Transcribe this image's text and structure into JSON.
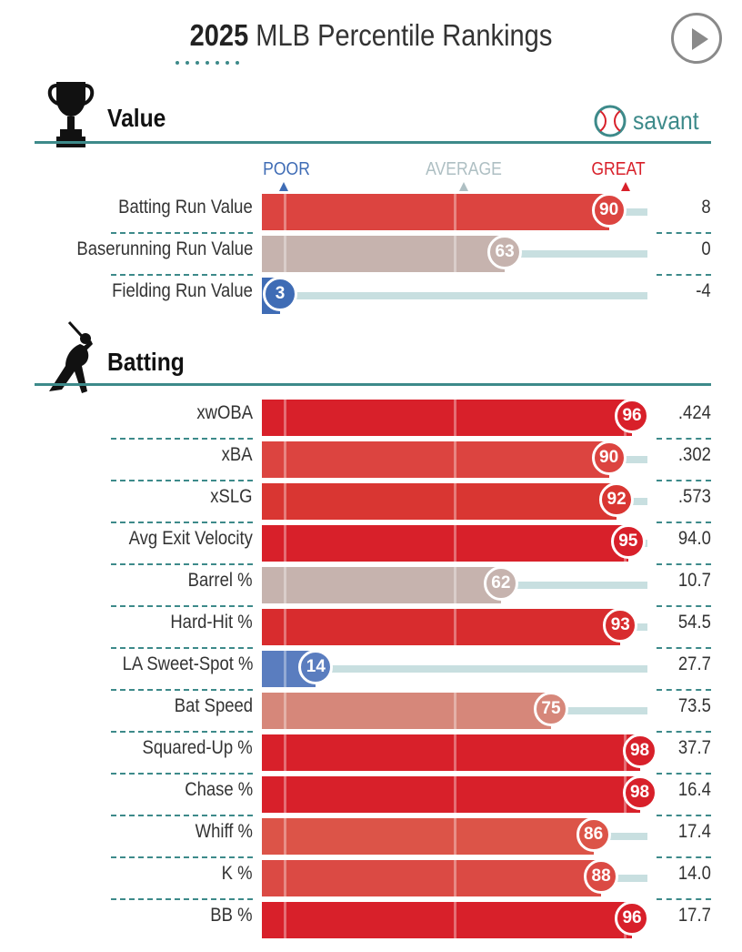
{
  "header": {
    "title_year": "2025",
    "title_rest": "MLB Percentile Rankings",
    "play_button_icon": "play-icon"
  },
  "brand": {
    "logo_icon": "baseball-icon",
    "name": "savant"
  },
  "scale": {
    "poor": "POOR",
    "average": "AVERAGE",
    "great": "GREAT"
  },
  "colors": {
    "accent": "#3d8a8a",
    "poor": "#3f6cb5",
    "average": "#aebfc3",
    "great": "#d8202a",
    "track": "#c8dfe0"
  },
  "sections": [
    {
      "title": "Value",
      "icon": "trophy-icon",
      "rows": [
        {
          "label": "Batting Run Value",
          "percentile": 90,
          "value": "8",
          "color": "#dc4440"
        },
        {
          "label": "Baserunning Run Value",
          "percentile": 63,
          "value": "0",
          "color": "#c6b3ae"
        },
        {
          "label": "Fielding Run Value",
          "percentile": 3,
          "value": "-4",
          "color": "#3f6cb5"
        }
      ]
    },
    {
      "title": "Batting",
      "icon": "batter-icon",
      "rows": [
        {
          "label": "xwOBA",
          "percentile": 96,
          "value": ".424",
          "color": "#d8202a"
        },
        {
          "label": "xBA",
          "percentile": 90,
          "value": ".302",
          "color": "#dc4440"
        },
        {
          "label": "xSLG",
          "percentile": 92,
          "value": ".573",
          "color": "#d93632"
        },
        {
          "label": "Avg Exit Velocity",
          "percentile": 95,
          "value": "94.0",
          "color": "#d8202a"
        },
        {
          "label": "Barrel %",
          "percentile": 62,
          "value": "10.7",
          "color": "#c6b3ae"
        },
        {
          "label": "Hard-Hit %",
          "percentile": 93,
          "value": "54.5",
          "color": "#d82c2e"
        },
        {
          "label": "LA Sweet-Spot %",
          "percentile": 14,
          "value": "27.7",
          "color": "#5a7dbf"
        },
        {
          "label": "Bat Speed",
          "percentile": 75,
          "value": "73.5",
          "color": "#d6877a"
        },
        {
          "label": "Squared-Up %",
          "percentile": 98,
          "value": "37.7",
          "color": "#d8202a"
        },
        {
          "label": "Chase %",
          "percentile": 98,
          "value": "16.4",
          "color": "#d8202a"
        },
        {
          "label": "Whiff %",
          "percentile": 86,
          "value": "17.4",
          "color": "#dc5448"
        },
        {
          "label": "K %",
          "percentile": 88,
          "value": "14.0",
          "color": "#db4a44"
        },
        {
          "label": "BB %",
          "percentile": 96,
          "value": "17.7",
          "color": "#d8202a"
        }
      ]
    }
  ],
  "chart_data": {
    "type": "bar",
    "title": "2025 MLB Percentile Rankings",
    "xlim": [
      0,
      100
    ],
    "categories": [
      "Batting Run Value",
      "Baserunning Run Value",
      "Fielding Run Value",
      "xwOBA",
      "xBA",
      "xSLG",
      "Avg Exit Velocity",
      "Barrel %",
      "Hard-Hit %",
      "LA Sweet-Spot %",
      "Bat Speed",
      "Squared-Up %",
      "Chase %",
      "Whiff %",
      "K %",
      "BB %"
    ],
    "series": [
      {
        "values": [
          90,
          63,
          3,
          96,
          90,
          92,
          95,
          62,
          93,
          14,
          75,
          98,
          98,
          86,
          88,
          96
        ]
      }
    ],
    "stat_values": [
      "8",
      "0",
      "-4",
      ".424",
      ".302",
      ".573",
      "94.0",
      "10.7",
      "54.5",
      "27.7",
      "73.5",
      "37.7",
      "16.4",
      "17.4",
      "14.0",
      "17.7"
    ],
    "scale_labels": [
      "POOR",
      "AVERAGE",
      "GREAT"
    ]
  }
}
